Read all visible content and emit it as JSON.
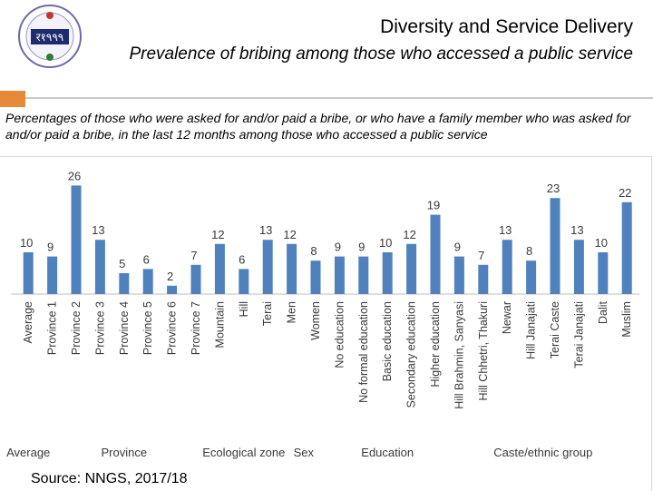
{
  "header": {
    "title": "Diversity and Service Delivery",
    "subtitle": "Prevalence of bribing among those who accessed a public service",
    "logo_text": "र१٩٩٩"
  },
  "description": "Percentages of those who were asked for and/or paid a bribe, or who have a family member who was asked for and/or paid a bribe, in the last 12 months among those who accessed a public service",
  "source": "Source: NNGS, 2017/18",
  "colors": {
    "bar": "#4f81bd",
    "accent": "#e8893a",
    "text": "#3a3a3a"
  },
  "chart_data": {
    "type": "bar",
    "title": "",
    "xlabel": "",
    "ylabel": "",
    "ylim": [
      0,
      30
    ],
    "categories": [
      "Average",
      "Province 1",
      "Province 2",
      "Province 3",
      "Province 4",
      "Province 5",
      "Province 6",
      "Province 7",
      "Mountain",
      "Hill",
      "Terai",
      "Men",
      "Women",
      "No education",
      "No formal education",
      "Basic education",
      "Secondary education",
      "Higher education",
      "Hill Brahmin, Sanyasi",
      "Hill Chhetri, Thakuri",
      "Newar",
      "Hill Janajati",
      "Terai Caste",
      "Terai Janajati",
      "Dalit",
      "Muslim"
    ],
    "values": [
      10,
      9,
      26,
      13,
      5,
      6,
      2,
      7,
      12,
      6,
      13,
      12,
      8,
      9,
      9,
      10,
      12,
      19,
      9,
      7,
      13,
      8,
      23,
      13,
      10,
      22
    ],
    "groups": [
      {
        "label": "Average",
        "start": 0,
        "end": 0
      },
      {
        "label": "Province",
        "start": 1,
        "end": 7
      },
      {
        "label": "Ecological zone",
        "start": 8,
        "end": 10
      },
      {
        "label": "Sex",
        "start": 11,
        "end": 12
      },
      {
        "label": "Education",
        "start": 13,
        "end": 17
      },
      {
        "label": "Caste/ethnic group",
        "start": 18,
        "end": 25
      }
    ]
  }
}
